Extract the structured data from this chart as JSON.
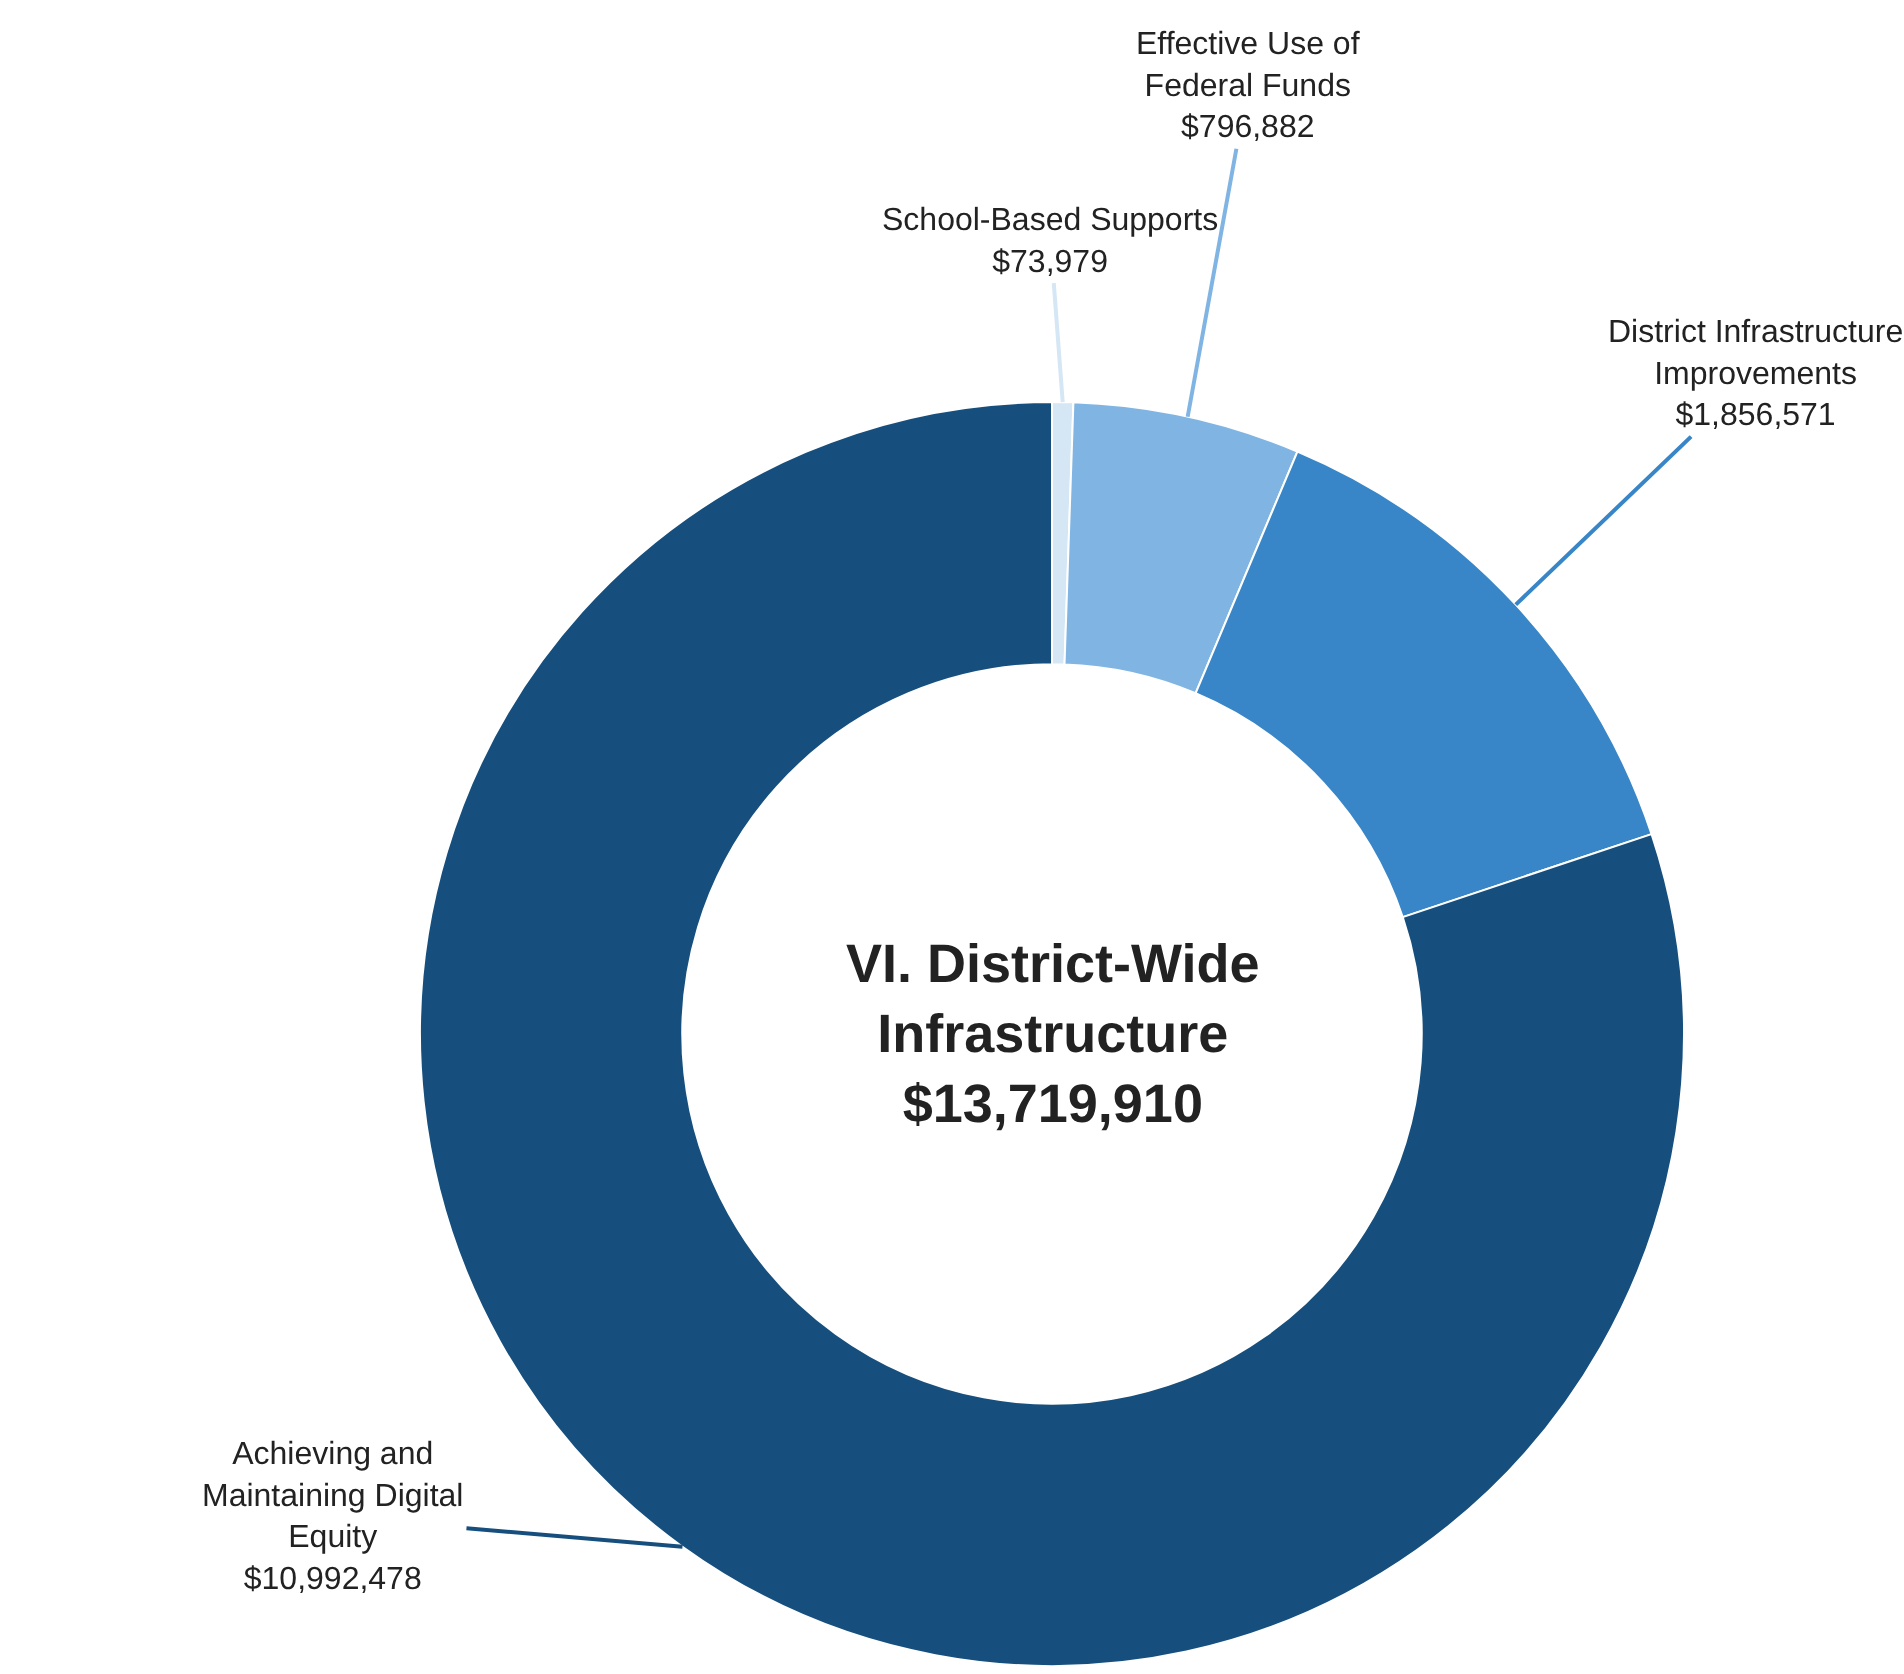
{
  "chart_data": {
    "type": "donut",
    "title": "VI. District-Wide Infrastructure",
    "subtitle": "$13,719,910",
    "categories": [
      "School-Based Supports",
      "Effective Use of Federal Funds",
      "District Infrastructure Improvements",
      "Achieving and Maintaining Digital Equity"
    ],
    "values": [
      73979,
      796882,
      1856571,
      10992478
    ],
    "value_labels": [
      "$73,979",
      "$796,882",
      "$1,856,571",
      "$10,992,478"
    ],
    "colors": [
      "#d5e6f5",
      "#80b5e3",
      "#3886c7",
      "#164f7d"
    ],
    "legend": false
  }
}
